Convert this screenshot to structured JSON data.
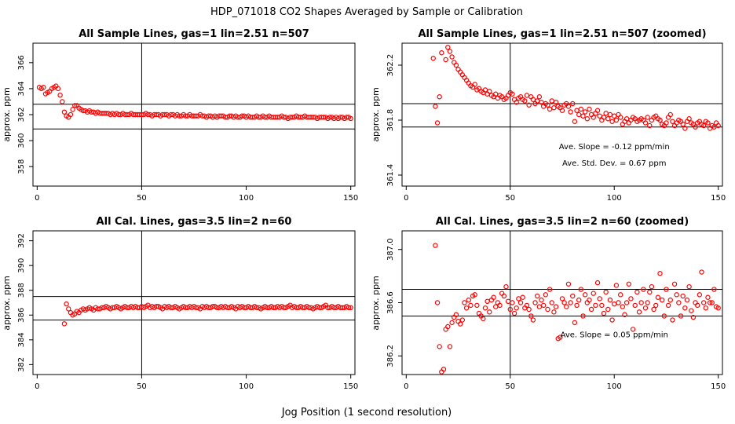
{
  "figure": {
    "title": "HDP_071018  CO2 Shapes Averaged by Sample or Calibration",
    "xlabel": "Jog Position (1 second resolution)",
    "point_color": "#ff0000",
    "line_color": "#000000"
  },
  "chart_data": [
    {
      "type": "scatter",
      "title": "All Sample Lines, gas=1 lin=2.51 n=507",
      "ylabel": "approx. ppm",
      "xlim": [
        -2,
        152
      ],
      "ylim": [
        356.5,
        367.5
      ],
      "xticks": [
        "0",
        "50",
        "100",
        "150"
      ],
      "xtick_values": [
        0,
        50,
        100,
        150
      ],
      "yticks": [
        "358",
        "360",
        "362",
        "364",
        "366"
      ],
      "ytick_values": [
        358,
        360,
        362,
        364,
        366
      ],
      "vline": 50,
      "hlines": [
        362.8,
        360.9
      ],
      "annotations": [],
      "x": [
        1,
        2,
        3,
        4,
        5,
        6,
        7,
        8,
        9,
        10,
        11,
        12,
        13,
        14,
        15,
        16,
        17,
        18,
        19,
        20,
        21,
        22,
        23,
        24,
        25,
        26,
        27,
        28,
        29,
        30,
        31,
        32,
        33,
        34,
        35,
        36,
        37,
        38,
        39,
        40,
        41,
        42,
        43,
        44,
        45,
        46,
        47,
        48,
        49,
        50,
        51,
        52,
        53,
        54,
        55,
        56,
        57,
        58,
        59,
        60,
        61,
        62,
        63,
        64,
        65,
        66,
        67,
        68,
        69,
        70,
        71,
        72,
        73,
        74,
        75,
        76,
        77,
        78,
        79,
        80,
        81,
        82,
        83,
        84,
        85,
        86,
        87,
        88,
        89,
        90,
        91,
        92,
        93,
        94,
        95,
        96,
        97,
        98,
        99,
        100,
        101,
        102,
        103,
        104,
        105,
        106,
        107,
        108,
        109,
        110,
        111,
        112,
        113,
        114,
        115,
        116,
        117,
        118,
        119,
        120,
        121,
        122,
        123,
        124,
        125,
        126,
        127,
        128,
        129,
        130,
        131,
        132,
        133,
        134,
        135,
        136,
        137,
        138,
        139,
        140,
        141,
        142,
        143,
        144,
        145,
        146,
        147,
        148,
        149,
        150
      ],
      "y": [
        364.1,
        364.0,
        364.1,
        363.6,
        363.7,
        363.8,
        364.0,
        364.1,
        364.2,
        364.0,
        363.5,
        363.0,
        362.2,
        361.9,
        361.8,
        362.0,
        362.4,
        362.7,
        362.7,
        362.5,
        362.4,
        362.3,
        362.3,
        362.2,
        362.3,
        362.2,
        362.2,
        362.1,
        362.2,
        362.1,
        362.1,
        362.1,
        362.1,
        362.1,
        362.0,
        362.1,
        362.0,
        362.1,
        362.0,
        362.0,
        362.1,
        362.0,
        362.0,
        362.0,
        362.1,
        362.0,
        362.0,
        362.0,
        362.0,
        362.0,
        362.0,
        362.1,
        362.0,
        362.0,
        361.9,
        362.0,
        362.0,
        362.0,
        361.9,
        362.0,
        362.0,
        362.0,
        361.9,
        362.0,
        362.0,
        361.9,
        362.0,
        361.9,
        361.9,
        362.0,
        361.9,
        361.9,
        362.0,
        361.9,
        361.9,
        361.9,
        361.9,
        362.0,
        361.9,
        361.9,
        361.8,
        361.9,
        361.9,
        361.8,
        361.9,
        361.8,
        361.9,
        361.9,
        361.9,
        361.8,
        361.8,
        361.9,
        361.9,
        361.8,
        361.9,
        361.8,
        361.8,
        361.9,
        361.9,
        361.8,
        361.9,
        361.8,
        361.8,
        361.8,
        361.9,
        361.8,
        361.8,
        361.9,
        361.8,
        361.8,
        361.9,
        361.8,
        361.8,
        361.8,
        361.8,
        361.8,
        361.9,
        361.8,
        361.8,
        361.7,
        361.8,
        361.8,
        361.8,
        361.9,
        361.8,
        361.8,
        361.8,
        361.9,
        361.8,
        361.8,
        361.8,
        361.8,
        361.8,
        361.7,
        361.8,
        361.8,
        361.8,
        361.8,
        361.7,
        361.8,
        361.8,
        361.7,
        361.8,
        361.7,
        361.8,
        361.8,
        361.7,
        361.8,
        361.8,
        361.7
      ]
    },
    {
      "type": "scatter",
      "title": "All Sample Lines, gas=1 lin=2.51 n=507 (zoomed)",
      "ylabel": "approx. ppm",
      "xlim": [
        -2,
        152
      ],
      "ylim": [
        361.32,
        362.36
      ],
      "xticks": [
        "0",
        "50",
        "100",
        "150"
      ],
      "xtick_values": [
        0,
        50,
        100,
        150
      ],
      "yticks": [
        "361.4",
        "361.8",
        "362.2"
      ],
      "ytick_values": [
        361.4,
        361.8,
        362.2
      ],
      "vline": 50,
      "hlines": [
        361.92,
        361.75
      ],
      "annotations": [
        {
          "text": "Ave. Slope =  -0.12  ppm/min",
          "x": 100,
          "y": 361.59
        },
        {
          "text": "Ave. Std. Dev. =  0.67  ppm",
          "x": 100,
          "y": 361.47
        }
      ],
      "x": [
        13,
        14,
        15,
        16,
        17,
        19,
        20,
        21,
        22,
        23,
        24,
        25,
        26,
        27,
        28,
        29,
        30,
        31,
        32,
        33,
        34,
        35,
        36,
        37,
        38,
        39,
        40,
        41,
        42,
        43,
        44,
        45,
        46,
        47,
        48,
        49,
        50,
        51,
        52,
        53,
        54,
        55,
        56,
        57,
        58,
        59,
        60,
        61,
        62,
        63,
        64,
        65,
        66,
        67,
        68,
        69,
        70,
        71,
        72,
        73,
        74,
        75,
        76,
        77,
        78,
        79,
        80,
        81,
        82,
        83,
        84,
        85,
        86,
        87,
        88,
        89,
        90,
        91,
        92,
        93,
        94,
        95,
        96,
        97,
        98,
        99,
        100,
        101,
        102,
        103,
        104,
        105,
        106,
        107,
        108,
        109,
        110,
        111,
        112,
        113,
        114,
        115,
        116,
        117,
        118,
        119,
        120,
        121,
        122,
        123,
        124,
        125,
        126,
        127,
        128,
        129,
        130,
        131,
        132,
        133,
        134,
        135,
        136,
        137,
        138,
        139,
        140,
        141,
        142,
        143,
        144,
        145,
        146,
        147,
        148,
        149,
        150
      ],
      "y": [
        362.25,
        361.9,
        361.78,
        361.97,
        362.29,
        362.24,
        362.33,
        362.3,
        362.26,
        362.22,
        362.2,
        362.17,
        362.15,
        362.13,
        362.11,
        362.09,
        362.07,
        362.05,
        362.04,
        362.06,
        362.02,
        362.03,
        362.01,
        362.0,
        362.02,
        361.99,
        362.01,
        361.98,
        361.97,
        361.99,
        361.96,
        361.98,
        361.97,
        361.95,
        361.96,
        361.98,
        362.0,
        361.99,
        361.95,
        361.93,
        361.96,
        361.97,
        361.95,
        361.94,
        361.98,
        361.91,
        361.97,
        361.95,
        361.92,
        361.94,
        361.97,
        361.93,
        361.9,
        361.92,
        361.91,
        361.88,
        361.94,
        361.89,
        361.93,
        361.9,
        361.89,
        361.87,
        361.91,
        361.92,
        361.9,
        361.86,
        361.92,
        361.79,
        361.87,
        361.84,
        361.88,
        361.83,
        361.86,
        361.81,
        361.88,
        361.84,
        361.82,
        361.85,
        361.87,
        361.83,
        361.8,
        361.82,
        361.85,
        361.81,
        361.84,
        361.79,
        361.83,
        361.8,
        361.84,
        361.82,
        361.77,
        361.79,
        361.81,
        361.78,
        361.8,
        361.82,
        361.81,
        361.79,
        361.8,
        361.81,
        361.8,
        361.78,
        361.82,
        361.76,
        361.8,
        361.82,
        361.83,
        361.81,
        361.8,
        361.77,
        361.76,
        361.78,
        361.82,
        361.84,
        361.79,
        361.76,
        361.78,
        361.8,
        361.79,
        361.77,
        361.74,
        361.79,
        361.81,
        361.78,
        361.77,
        361.75,
        361.78,
        361.79,
        361.77,
        361.76,
        361.79,
        361.78,
        361.74,
        361.76,
        361.75,
        361.78,
        361.76
      ]
    },
    {
      "type": "scatter",
      "title": "All Cal. Lines, gas=3.5 lin=2 n=60",
      "ylabel": "approx. ppm",
      "xlim": [
        -2,
        152
      ],
      "ylim": [
        381.2,
        392.8
      ],
      "xticks": [
        "0",
        "50",
        "100",
        "150"
      ],
      "xtick_values": [
        0,
        50,
        100,
        150
      ],
      "yticks": [
        "382",
        "384",
        "386",
        "388",
        "390",
        "392"
      ],
      "ytick_values": [
        382,
        384,
        386,
        388,
        390,
        392
      ],
      "vline": 50,
      "hlines": [
        387.5,
        385.6
      ],
      "annotations": [],
      "x": [
        13,
        14,
        15,
        16,
        17,
        18,
        19,
        20,
        21,
        22,
        23,
        24,
        25,
        26,
        27,
        28,
        29,
        30,
        31,
        32,
        33,
        34,
        35,
        36,
        37,
        38,
        39,
        40,
        41,
        42,
        43,
        44,
        45,
        46,
        47,
        48,
        49,
        50,
        51,
        52,
        53,
        54,
        55,
        56,
        57,
        58,
        59,
        60,
        61,
        62,
        63,
        64,
        65,
        66,
        67,
        68,
        69,
        70,
        71,
        72,
        73,
        74,
        75,
        76,
        77,
        78,
        79,
        80,
        81,
        82,
        83,
        84,
        85,
        86,
        87,
        88,
        89,
        90,
        91,
        92,
        93,
        94,
        95,
        96,
        97,
        98,
        99,
        100,
        101,
        102,
        103,
        104,
        105,
        106,
        107,
        108,
        109,
        110,
        111,
        112,
        113,
        114,
        115,
        116,
        117,
        118,
        119,
        120,
        121,
        122,
        123,
        124,
        125,
        126,
        127,
        128,
        129,
        130,
        131,
        132,
        133,
        134,
        135,
        136,
        137,
        138,
        139,
        140,
        141,
        142,
        143,
        144,
        145,
        146,
        147,
        148,
        149,
        150
      ],
      "y": [
        385.3,
        386.9,
        386.5,
        386.2,
        386.0,
        386.1,
        386.3,
        386.2,
        386.4,
        386.5,
        386.4,
        386.5,
        386.6,
        386.5,
        386.4,
        386.6,
        386.5,
        386.5,
        386.6,
        386.6,
        386.7,
        386.6,
        386.5,
        386.6,
        386.6,
        386.7,
        386.6,
        386.5,
        386.6,
        386.7,
        386.6,
        386.6,
        386.7,
        386.6,
        386.7,
        386.6,
        386.6,
        386.7,
        386.6,
        386.7,
        386.8,
        386.6,
        386.7,
        386.6,
        386.7,
        386.7,
        386.6,
        386.5,
        386.7,
        386.6,
        386.7,
        386.6,
        386.6,
        386.7,
        386.6,
        386.5,
        386.6,
        386.7,
        386.6,
        386.6,
        386.7,
        386.6,
        386.7,
        386.6,
        386.6,
        386.5,
        386.7,
        386.6,
        386.7,
        386.6,
        386.6,
        386.7,
        386.7,
        386.6,
        386.6,
        386.7,
        386.6,
        386.7,
        386.6,
        386.6,
        386.7,
        386.6,
        386.5,
        386.7,
        386.6,
        386.7,
        386.6,
        386.6,
        386.7,
        386.6,
        386.6,
        386.7,
        386.6,
        386.6,
        386.5,
        386.6,
        386.7,
        386.6,
        386.6,
        386.7,
        386.6,
        386.6,
        386.7,
        386.6,
        386.7,
        386.6,
        386.6,
        386.7,
        386.8,
        386.6,
        386.7,
        386.6,
        386.6,
        386.7,
        386.6,
        386.6,
        386.7,
        386.6,
        386.6,
        386.5,
        386.6,
        386.7,
        386.6,
        386.6,
        386.7,
        386.8,
        386.6,
        386.6,
        386.7,
        386.6,
        386.6,
        386.7,
        386.6,
        386.6,
        386.6,
        386.7,
        386.6,
        386.6
      ]
    },
    {
      "type": "scatter",
      "title": "All Cal. Lines, gas=3.5 lin=2 n=60 (zoomed)",
      "ylabel": "approx. ppm",
      "xlim": [
        -2,
        152
      ],
      "ylim": [
        386.06,
        387.14
      ],
      "xticks": [
        "0",
        "50",
        "100",
        "150"
      ],
      "xtick_values": [
        0,
        50,
        100,
        150
      ],
      "yticks": [
        "386.2",
        "386.6",
        "387.0"
      ],
      "ytick_values": [
        386.2,
        386.6,
        387.0
      ],
      "vline": 50,
      "hlines": [
        386.7,
        386.5
      ],
      "annotations": [
        {
          "text": "Ave. Slope =  0.05  ppm/min",
          "x": 100,
          "y": 386.34
        }
      ],
      "x": [
        14,
        15,
        16,
        17,
        18,
        19,
        20,
        21,
        22,
        23,
        24,
        25,
        26,
        27,
        28,
        29,
        30,
        31,
        32,
        33,
        34,
        35,
        36,
        37,
        38,
        39,
        40,
        41,
        42,
        43,
        44,
        45,
        46,
        47,
        48,
        49,
        50,
        51,
        52,
        53,
        54,
        55,
        56,
        57,
        58,
        59,
        60,
        61,
        62,
        63,
        64,
        65,
        66,
        67,
        68,
        69,
        70,
        71,
        72,
        73,
        74,
        75,
        76,
        77,
        78,
        79,
        80,
        81,
        82,
        83,
        84,
        85,
        86,
        87,
        88,
        89,
        90,
        91,
        92,
        93,
        94,
        95,
        96,
        97,
        98,
        99,
        100,
        101,
        102,
        103,
        104,
        105,
        106,
        107,
        108,
        109,
        110,
        111,
        112,
        113,
        114,
        115,
        116,
        117,
        118,
        119,
        120,
        121,
        122,
        123,
        124,
        125,
        126,
        127,
        128,
        129,
        130,
        131,
        132,
        133,
        134,
        135,
        136,
        137,
        138,
        139,
        140,
        141,
        142,
        143,
        144,
        145,
        146,
        147,
        148,
        149,
        150
      ],
      "y": [
        387.03,
        386.6,
        386.27,
        386.08,
        386.1,
        386.4,
        386.42,
        386.27,
        386.45,
        386.49,
        386.51,
        386.46,
        386.44,
        386.47,
        386.6,
        386.56,
        386.62,
        386.58,
        386.65,
        386.66,
        386.58,
        386.52,
        386.5,
        386.48,
        386.56,
        386.61,
        386.53,
        386.62,
        386.64,
        386.57,
        386.6,
        386.58,
        386.67,
        386.65,
        386.72,
        386.61,
        386.55,
        386.6,
        386.52,
        386.56,
        386.63,
        386.6,
        386.64,
        386.56,
        386.58,
        386.55,
        386.5,
        386.47,
        386.6,
        386.65,
        386.57,
        386.62,
        386.58,
        386.66,
        386.55,
        386.7,
        386.6,
        386.53,
        386.57,
        386.33,
        386.34,
        386.63,
        386.6,
        386.57,
        386.74,
        386.6,
        386.65,
        386.45,
        386.58,
        386.62,
        386.7,
        386.5,
        386.66,
        386.6,
        386.62,
        386.55,
        386.67,
        386.58,
        386.75,
        386.63,
        386.58,
        386.52,
        386.68,
        386.55,
        386.62,
        386.47,
        386.59,
        386.73,
        386.6,
        386.66,
        386.57,
        386.51,
        386.6,
        386.74,
        386.63,
        386.4,
        386.58,
        386.68,
        386.53,
        386.6,
        386.7,
        386.56,
        386.6,
        386.68,
        386.72,
        386.55,
        386.58,
        386.64,
        386.82,
        386.62,
        386.5,
        386.7,
        386.58,
        386.62,
        386.47,
        386.74,
        386.66,
        386.6,
        386.5,
        386.65,
        386.56,
        386.62,
        386.72,
        386.54,
        386.49,
        386.6,
        386.58,
        386.66,
        386.83,
        386.6,
        386.56,
        386.64,
        386.6,
        386.6,
        386.7,
        386.57,
        386.56
      ]
    }
  ]
}
